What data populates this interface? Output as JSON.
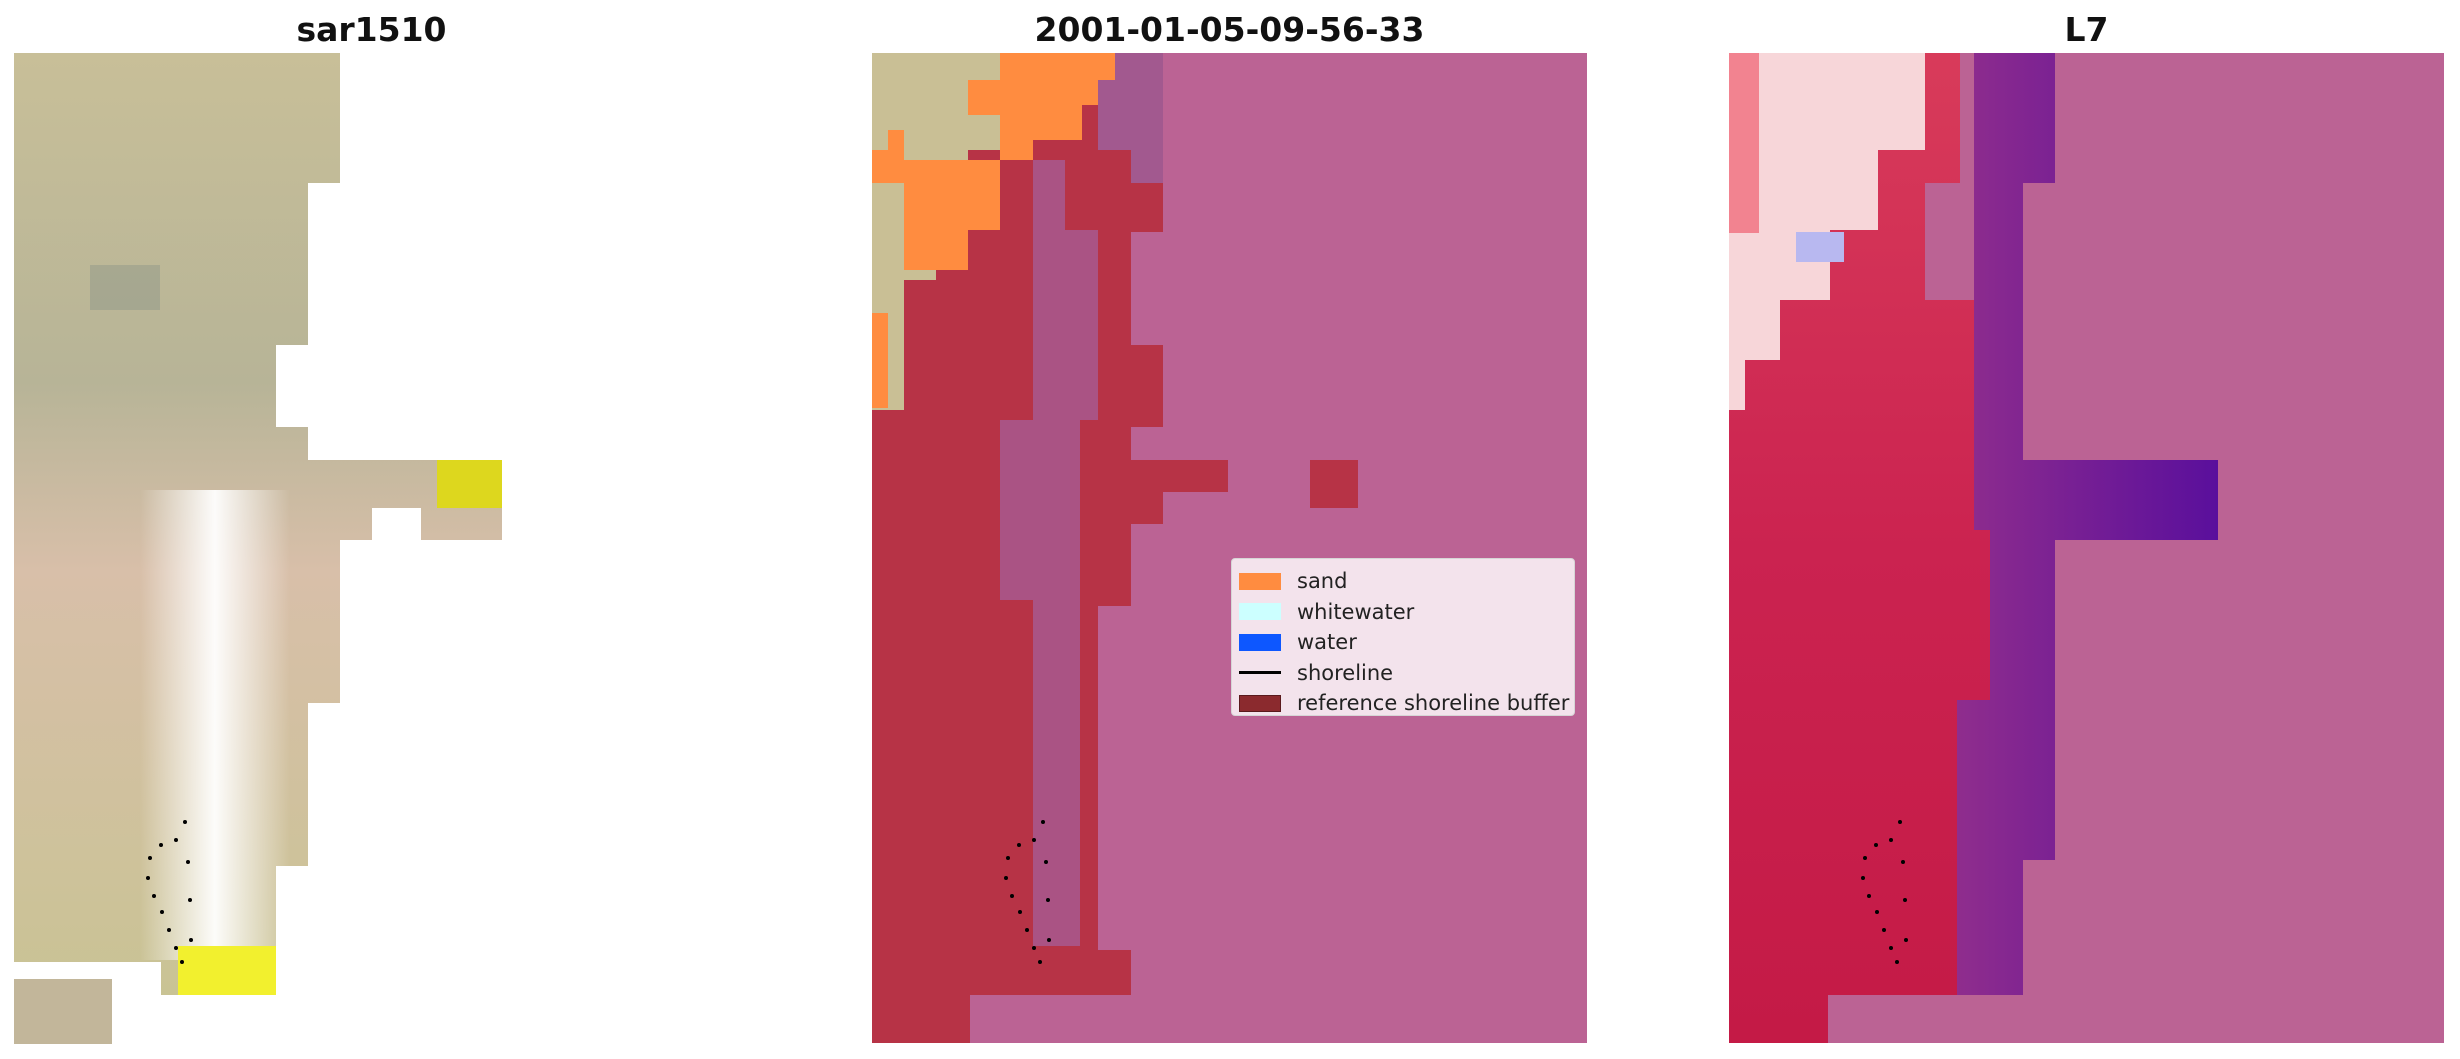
{
  "panels": [
    {
      "title": "sar1510"
    },
    {
      "title": "2001-01-05-09-56-33"
    },
    {
      "title": "L7"
    }
  ],
  "legend": {
    "items": [
      {
        "label": "sand",
        "color": "#ff8c40",
        "kind": "patch"
      },
      {
        "label": "whitewater",
        "color": "#ccffff",
        "kind": "patch"
      },
      {
        "label": "water",
        "color": "#0d57ff",
        "kind": "patch"
      },
      {
        "label": "shoreline",
        "color": "#000000",
        "kind": "line"
      },
      {
        "label": "reference shoreline buffer",
        "color": "#8b2a2e",
        "kind": "patch"
      }
    ]
  },
  "colors": {
    "background": "#ffffff",
    "overlay_pink": "#bb6394",
    "overlay_red": "#b73346",
    "overlay_purple_dark": "#a8578b",
    "land_tan": "#c9bf95",
    "shoreline_points": "#000000",
    "index_red": "#c9214a",
    "index_purple": "#62109e"
  }
}
